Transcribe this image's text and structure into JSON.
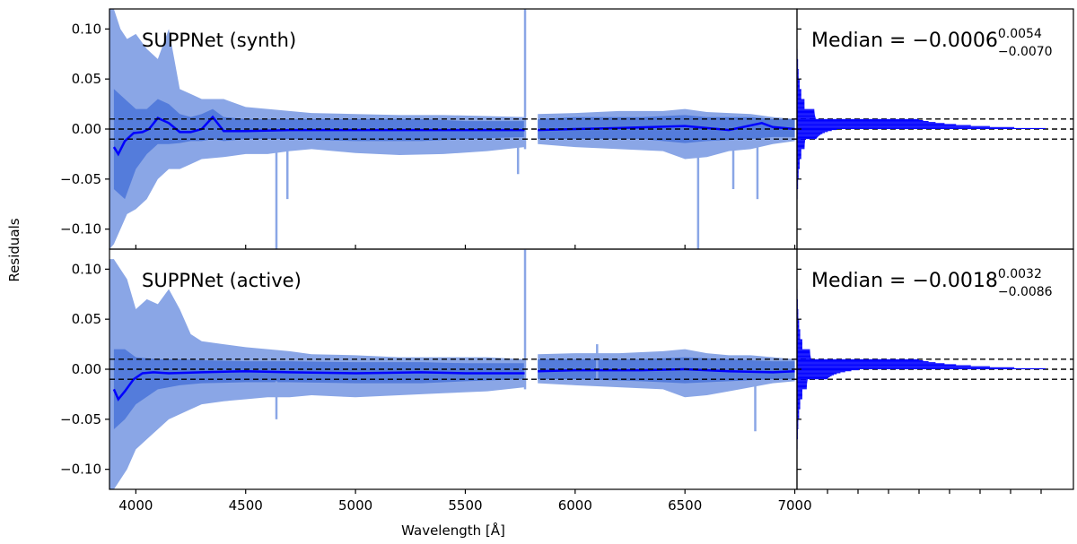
{
  "chart_data": {
    "type": "line",
    "shared_ylabel": "Residuals",
    "shared_xlabel": "Wavelength [Å]",
    "xlim": [
      3880,
      7010
    ],
    "ylim": [
      -0.12,
      0.12
    ],
    "x_ticks": [
      "4000",
      "4500",
      "5000",
      "5500",
      "6000",
      "6500",
      "7000"
    ],
    "x_tick_values": [
      4000,
      4500,
      5000,
      5500,
      6000,
      6500,
      7000
    ],
    "y_ticks": [
      "0.10",
      "0.05",
      "0.00",
      "−0.05",
      "−0.10"
    ],
    "y_tick_values": [
      0.1,
      0.05,
      0.0,
      -0.05,
      -0.1
    ],
    "reference_lines": [
      -0.01,
      0,
      0.01
    ],
    "colors": {
      "outer_band": "#8aa6e6",
      "inner_band": "#4a74d8",
      "median_line": "#0000ff",
      "ref_line": "#000000"
    },
    "panels": [
      {
        "title": "SUPPNet (synth)",
        "median_label": {
          "prefix": "Median = ",
          "value": "−0.0006",
          "upper": "0.0054",
          "lower": "−0.0070"
        },
        "median": {
          "x": [
            3900,
            3920,
            3950,
            3990,
            4030,
            4060,
            4100,
            4150,
            4200,
            4250,
            4300,
            4350,
            4400,
            4500,
            4700,
            5000,
            5300,
            5500,
            5770,
            5830,
            6000,
            6200,
            6500,
            6700,
            6850,
            6900,
            7000
          ],
          "y": [
            -0.018,
            -0.025,
            -0.012,
            -0.004,
            -0.003,
            0.0,
            0.011,
            0.006,
            -0.003,
            -0.003,
            0.0,
            0.012,
            -0.002,
            -0.002,
            -0.001,
            -0.001,
            -0.001,
            -0.001,
            -0.001,
            -0.001,
            0.0,
            0.001,
            0.003,
            -0.001,
            0.006,
            0.002,
            0.0
          ]
        },
        "inner_band": {
          "x": [
            3900,
            3950,
            4000,
            4050,
            4100,
            4150,
            4200,
            4250,
            4300,
            4350,
            4400,
            4500,
            4700,
            5000,
            5300,
            5500,
            5770,
            5830,
            6000,
            6300,
            6500,
            6600,
            6800,
            6900,
            7000
          ],
          "upper": [
            0.04,
            0.03,
            0.02,
            0.02,
            0.03,
            0.025,
            0.015,
            0.012,
            0.015,
            0.02,
            0.012,
            0.01,
            0.01,
            0.01,
            0.01,
            0.008,
            0.008,
            0.01,
            0.012,
            0.012,
            0.014,
            0.012,
            0.012,
            0.01,
            0.01
          ],
          "lower": [
            -0.06,
            -0.07,
            -0.04,
            -0.025,
            -0.015,
            -0.015,
            -0.014,
            -0.012,
            -0.012,
            -0.01,
            -0.012,
            -0.01,
            -0.01,
            -0.012,
            -0.012,
            -0.01,
            -0.008,
            -0.01,
            -0.01,
            -0.01,
            -0.014,
            -0.012,
            -0.01,
            -0.008,
            -0.008
          ]
        },
        "outer_band": {
          "x": [
            3880,
            3900,
            3930,
            3960,
            4000,
            4050,
            4100,
            4150,
            4200,
            4250,
            4300,
            4400,
            4500,
            4600,
            4700,
            4800,
            5000,
            5200,
            5400,
            5600,
            5770,
            5830,
            6000,
            6200,
            6400,
            6500,
            6600,
            6700,
            6800,
            6900,
            7000
          ],
          "upper": [
            0.12,
            0.12,
            0.1,
            0.09,
            0.095,
            0.08,
            0.07,
            0.1,
            0.04,
            0.035,
            0.03,
            0.03,
            0.022,
            0.02,
            0.018,
            0.016,
            0.015,
            0.014,
            0.014,
            0.013,
            0.012,
            0.015,
            0.016,
            0.018,
            0.018,
            0.02,
            0.017,
            0.016,
            0.015,
            0.012,
            0.01
          ],
          "lower": [
            -0.12,
            -0.115,
            -0.1,
            -0.085,
            -0.08,
            -0.07,
            -0.05,
            -0.04,
            -0.04,
            -0.035,
            -0.03,
            -0.028,
            -0.025,
            -0.025,
            -0.022,
            -0.02,
            -0.024,
            -0.026,
            -0.025,
            -0.022,
            -0.018,
            -0.015,
            -0.018,
            -0.02,
            -0.022,
            -0.03,
            -0.028,
            -0.022,
            -0.02,
            -0.015,
            -0.012
          ]
        },
        "spikes": [
          {
            "x": 4640,
            "ymin": -0.12,
            "ymax": -0.012
          },
          {
            "x": 4690,
            "ymin": -0.07,
            "ymax": -0.012
          },
          {
            "x": 5740,
            "ymin": -0.045,
            "ymax": -0.01
          },
          {
            "x": 5772,
            "ymin": -0.02,
            "ymax": 0.12
          },
          {
            "x": 6560,
            "ymin": -0.12,
            "ymax": -0.015
          },
          {
            "x": 6720,
            "ymin": -0.06,
            "ymax": -0.015
          },
          {
            "x": 6830,
            "ymin": -0.07,
            "ymax": -0.015
          }
        ],
        "histogram": {
          "bins": [
            -0.12,
            -0.11,
            -0.1,
            -0.09,
            -0.08,
            -0.07,
            -0.06,
            -0.05,
            -0.04,
            -0.03,
            -0.02,
            -0.01,
            0.0,
            0.01,
            0.02,
            0.03,
            0.04,
            0.05,
            0.06,
            0.07,
            0.08,
            0.09,
            0.1,
            0.11
          ],
          "counts": [
            0.0,
            0.0,
            0.0,
            0.0,
            0.0,
            0.005,
            0.01,
            0.015,
            0.025,
            0.04,
            0.07,
            0.16,
            1.0,
            0.16,
            0.07,
            0.04,
            0.025,
            0.015,
            0.01,
            0.005,
            0.0,
            0.0,
            0.0,
            0.0
          ]
        }
      },
      {
        "title": "SUPPNet (active)",
        "median_label": {
          "prefix": "Median = ",
          "value": "−0.0018",
          "upper": "0.0032",
          "lower": "−0.0086"
        },
        "median": {
          "x": [
            3900,
            3920,
            3950,
            3990,
            4030,
            4080,
            4150,
            4300,
            4500,
            4700,
            5000,
            5300,
            5500,
            5770,
            5830,
            6000,
            6300,
            6500,
            6700,
            6900,
            7000
          ],
          "y": [
            -0.02,
            -0.03,
            -0.022,
            -0.01,
            -0.004,
            -0.003,
            -0.004,
            -0.003,
            -0.002,
            -0.003,
            -0.004,
            -0.003,
            -0.004,
            -0.004,
            -0.002,
            -0.001,
            -0.001,
            0.0,
            -0.002,
            -0.003,
            -0.002
          ]
        },
        "inner_band": {
          "x": [
            3900,
            3950,
            4000,
            4100,
            4200,
            4300,
            4500,
            4700,
            5000,
            5300,
            5500,
            5770,
            5830,
            6000,
            6300,
            6500,
            6700,
            6900,
            7000
          ],
          "upper": [
            0.02,
            0.02,
            0.012,
            0.01,
            0.01,
            0.009,
            0.008,
            0.008,
            0.007,
            0.007,
            0.006,
            0.006,
            0.01,
            0.01,
            0.01,
            0.012,
            0.01,
            0.008,
            0.008
          ],
          "lower": [
            -0.06,
            -0.05,
            -0.035,
            -0.02,
            -0.016,
            -0.014,
            -0.013,
            -0.013,
            -0.014,
            -0.014,
            -0.012,
            -0.01,
            -0.01,
            -0.01,
            -0.012,
            -0.014,
            -0.012,
            -0.01,
            -0.01
          ]
        },
        "outer_band": {
          "x": [
            3880,
            3900,
            3930,
            3960,
            4000,
            4050,
            4100,
            4150,
            4200,
            4250,
            4300,
            4400,
            4500,
            4600,
            4700,
            4800,
            5000,
            5200,
            5400,
            5600,
            5770,
            5830,
            6000,
            6200,
            6400,
            6500,
            6600,
            6700,
            6800,
            6900,
            7000
          ],
          "upper": [
            0.11,
            0.11,
            0.1,
            0.09,
            0.06,
            0.07,
            0.065,
            0.08,
            0.06,
            0.035,
            0.028,
            0.025,
            0.022,
            0.02,
            0.018,
            0.015,
            0.014,
            0.012,
            0.012,
            0.012,
            0.01,
            0.015,
            0.016,
            0.016,
            0.018,
            0.02,
            0.016,
            0.014,
            0.014,
            0.012,
            0.01
          ],
          "lower": [
            -0.12,
            -0.12,
            -0.11,
            -0.1,
            -0.08,
            -0.07,
            -0.06,
            -0.05,
            -0.045,
            -0.04,
            -0.035,
            -0.032,
            -0.03,
            -0.028,
            -0.028,
            -0.026,
            -0.028,
            -0.026,
            -0.024,
            -0.022,
            -0.018,
            -0.014,
            -0.016,
            -0.018,
            -0.02,
            -0.028,
            -0.026,
            -0.022,
            -0.018,
            -0.014,
            -0.012
          ]
        },
        "spikes": [
          {
            "x": 4640,
            "ymin": -0.05,
            "ymax": -0.012
          },
          {
            "x": 5772,
            "ymin": -0.02,
            "ymax": 0.12
          },
          {
            "x": 6100,
            "ymin": -0.01,
            "ymax": 0.025
          },
          {
            "x": 6820,
            "ymin": -0.062,
            "ymax": -0.015
          }
        ],
        "histogram": {
          "bins": [
            -0.12,
            -0.11,
            -0.1,
            -0.09,
            -0.08,
            -0.07,
            -0.06,
            -0.05,
            -0.04,
            -0.03,
            -0.02,
            -0.01,
            0.0,
            0.01,
            0.02,
            0.03,
            0.04,
            0.05,
            0.06,
            0.07,
            0.08,
            0.09,
            0.1,
            0.11
          ],
          "counts": [
            0.0,
            0.0,
            0.0,
            0.0,
            0.005,
            0.008,
            0.012,
            0.02,
            0.03,
            0.05,
            0.09,
            0.25,
            1.0,
            0.12,
            0.05,
            0.03,
            0.02,
            0.012,
            0.008,
            0.005,
            0.0,
            0.0,
            0.0,
            0.0
          ]
        }
      }
    ]
  }
}
